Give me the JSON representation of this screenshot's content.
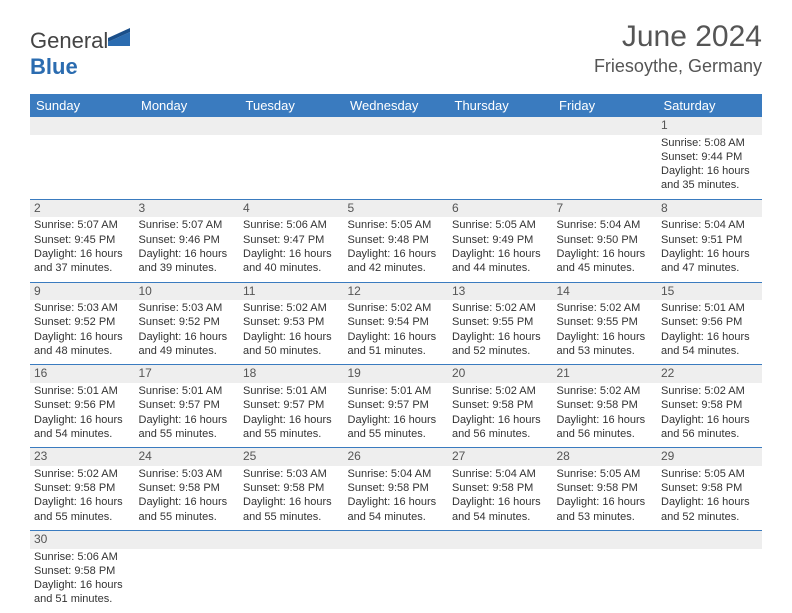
{
  "logo": {
    "text_gen": "General",
    "text_blue": "Blue"
  },
  "title": "June 2024",
  "location": "Friesoythe, Germany",
  "colors": {
    "header_bg": "#3a7bbf",
    "header_text": "#ffffff",
    "daynum_bg": "#eeeeee",
    "border": "#3a7bbf",
    "text": "#333333",
    "title_text": "#555555"
  },
  "day_headers": [
    "Sunday",
    "Monday",
    "Tuesday",
    "Wednesday",
    "Thursday",
    "Friday",
    "Saturday"
  ],
  "weeks": [
    [
      null,
      null,
      null,
      null,
      null,
      null,
      {
        "n": "1",
        "sr": "5:08 AM",
        "ss": "9:44 PM",
        "dl": "16 hours and 35 minutes."
      }
    ],
    [
      {
        "n": "2",
        "sr": "5:07 AM",
        "ss": "9:45 PM",
        "dl": "16 hours and 37 minutes."
      },
      {
        "n": "3",
        "sr": "5:07 AM",
        "ss": "9:46 PM",
        "dl": "16 hours and 39 minutes."
      },
      {
        "n": "4",
        "sr": "5:06 AM",
        "ss": "9:47 PM",
        "dl": "16 hours and 40 minutes."
      },
      {
        "n": "5",
        "sr": "5:05 AM",
        "ss": "9:48 PM",
        "dl": "16 hours and 42 minutes."
      },
      {
        "n": "6",
        "sr": "5:05 AM",
        "ss": "9:49 PM",
        "dl": "16 hours and 44 minutes."
      },
      {
        "n": "7",
        "sr": "5:04 AM",
        "ss": "9:50 PM",
        "dl": "16 hours and 45 minutes."
      },
      {
        "n": "8",
        "sr": "5:04 AM",
        "ss": "9:51 PM",
        "dl": "16 hours and 47 minutes."
      }
    ],
    [
      {
        "n": "9",
        "sr": "5:03 AM",
        "ss": "9:52 PM",
        "dl": "16 hours and 48 minutes."
      },
      {
        "n": "10",
        "sr": "5:03 AM",
        "ss": "9:52 PM",
        "dl": "16 hours and 49 minutes."
      },
      {
        "n": "11",
        "sr": "5:02 AM",
        "ss": "9:53 PM",
        "dl": "16 hours and 50 minutes."
      },
      {
        "n": "12",
        "sr": "5:02 AM",
        "ss": "9:54 PM",
        "dl": "16 hours and 51 minutes."
      },
      {
        "n": "13",
        "sr": "5:02 AM",
        "ss": "9:55 PM",
        "dl": "16 hours and 52 minutes."
      },
      {
        "n": "14",
        "sr": "5:02 AM",
        "ss": "9:55 PM",
        "dl": "16 hours and 53 minutes."
      },
      {
        "n": "15",
        "sr": "5:01 AM",
        "ss": "9:56 PM",
        "dl": "16 hours and 54 minutes."
      }
    ],
    [
      {
        "n": "16",
        "sr": "5:01 AM",
        "ss": "9:56 PM",
        "dl": "16 hours and 54 minutes."
      },
      {
        "n": "17",
        "sr": "5:01 AM",
        "ss": "9:57 PM",
        "dl": "16 hours and 55 minutes."
      },
      {
        "n": "18",
        "sr": "5:01 AM",
        "ss": "9:57 PM",
        "dl": "16 hours and 55 minutes."
      },
      {
        "n": "19",
        "sr": "5:01 AM",
        "ss": "9:57 PM",
        "dl": "16 hours and 55 minutes."
      },
      {
        "n": "20",
        "sr": "5:02 AM",
        "ss": "9:58 PM",
        "dl": "16 hours and 56 minutes."
      },
      {
        "n": "21",
        "sr": "5:02 AM",
        "ss": "9:58 PM",
        "dl": "16 hours and 56 minutes."
      },
      {
        "n": "22",
        "sr": "5:02 AM",
        "ss": "9:58 PM",
        "dl": "16 hours and 56 minutes."
      }
    ],
    [
      {
        "n": "23",
        "sr": "5:02 AM",
        "ss": "9:58 PM",
        "dl": "16 hours and 55 minutes."
      },
      {
        "n": "24",
        "sr": "5:03 AM",
        "ss": "9:58 PM",
        "dl": "16 hours and 55 minutes."
      },
      {
        "n": "25",
        "sr": "5:03 AM",
        "ss": "9:58 PM",
        "dl": "16 hours and 55 minutes."
      },
      {
        "n": "26",
        "sr": "5:04 AM",
        "ss": "9:58 PM",
        "dl": "16 hours and 54 minutes."
      },
      {
        "n": "27",
        "sr": "5:04 AM",
        "ss": "9:58 PM",
        "dl": "16 hours and 54 minutes."
      },
      {
        "n": "28",
        "sr": "5:05 AM",
        "ss": "9:58 PM",
        "dl": "16 hours and 53 minutes."
      },
      {
        "n": "29",
        "sr": "5:05 AM",
        "ss": "9:58 PM",
        "dl": "16 hours and 52 minutes."
      }
    ],
    [
      {
        "n": "30",
        "sr": "5:06 AM",
        "ss": "9:58 PM",
        "dl": "16 hours and 51 minutes."
      },
      null,
      null,
      null,
      null,
      null,
      null
    ]
  ],
  "labels": {
    "sunrise": "Sunrise:",
    "sunset": "Sunset:",
    "daylight": "Daylight:"
  }
}
